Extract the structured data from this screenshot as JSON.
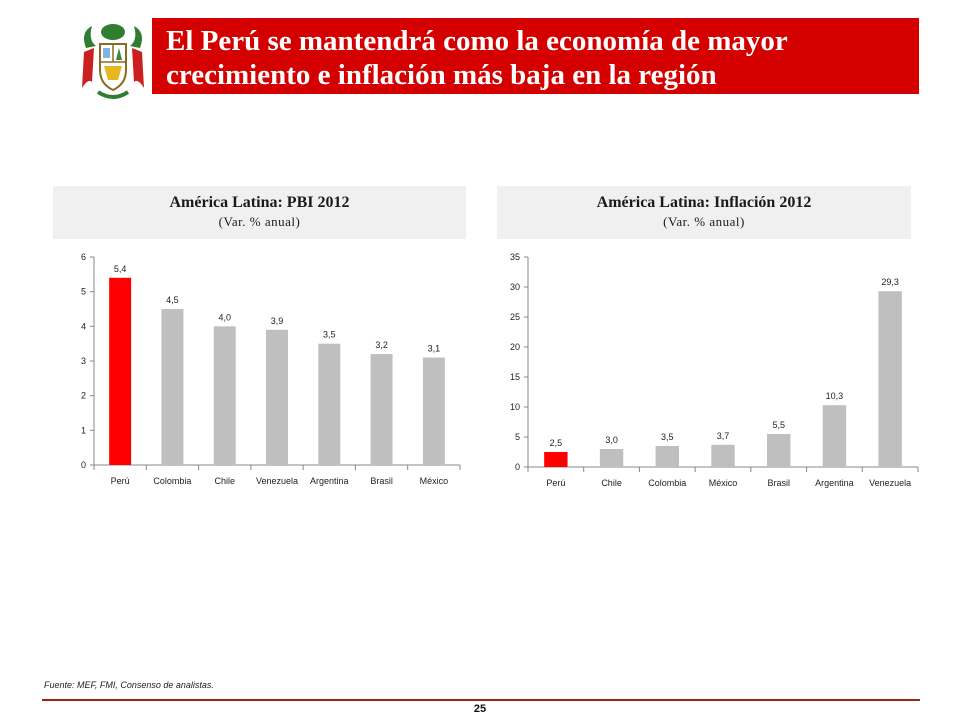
{
  "header": {
    "title_line1": "El Perú se mantendrá como la economía de mayor",
    "title_line2": "crecimiento e inflación más baja en la región",
    "accent_color": "#d40000"
  },
  "charts": {
    "pbi": {
      "title": "América Latina: PBI 2012",
      "subtitle": "(Var. % anual)"
    },
    "inflation": {
      "title": "América Latina: Inflación 2012",
      "subtitle": "(Var. % anual)"
    }
  },
  "chart_data": [
    {
      "type": "bar",
      "title": "América Latina: PBI 2012",
      "subtitle": "(Var. % anual)",
      "categories": [
        "Perú",
        "Colombia",
        "Chile",
        "Venezuela",
        "Argentina",
        "Brasil",
        "México"
      ],
      "values": [
        5.4,
        4.5,
        4.0,
        3.9,
        3.5,
        3.2,
        3.1
      ],
      "data_labels": [
        "5,4",
        "4,5",
        "4,0",
        "3,9",
        "3,5",
        "3,2",
        "3,1"
      ],
      "ylim": [
        0,
        6
      ],
      "yticks": [
        0,
        1,
        2,
        3,
        4,
        5,
        6
      ],
      "highlight_index": 0,
      "highlight_color": "#ff0000",
      "bar_color": "#bfbfbf",
      "grid": false
    },
    {
      "type": "bar",
      "title": "América Latina: Inflación 2012",
      "subtitle": "(Var. % anual)",
      "categories": [
        "Perú",
        "Chile",
        "Colombia",
        "México",
        "Brasil",
        "Argentina",
        "Venezuela"
      ],
      "values": [
        2.5,
        3.0,
        3.5,
        3.7,
        5.5,
        10.3,
        29.3
      ],
      "data_labels": [
        "2,5",
        "3,0",
        "3,5",
        "3,7",
        "5,5",
        "10,3",
        "29,3"
      ],
      "ylim": [
        0,
        35
      ],
      "yticks": [
        0,
        5,
        10,
        15,
        20,
        25,
        30,
        35
      ],
      "highlight_index": 0,
      "highlight_color": "#ff0000",
      "bar_color": "#bfbfbf",
      "grid": false
    }
  ],
  "footer": {
    "source": "Fuente: MEF, FMI, Consenso de analistas.",
    "page_number": "25",
    "line_color": "#a02020"
  }
}
